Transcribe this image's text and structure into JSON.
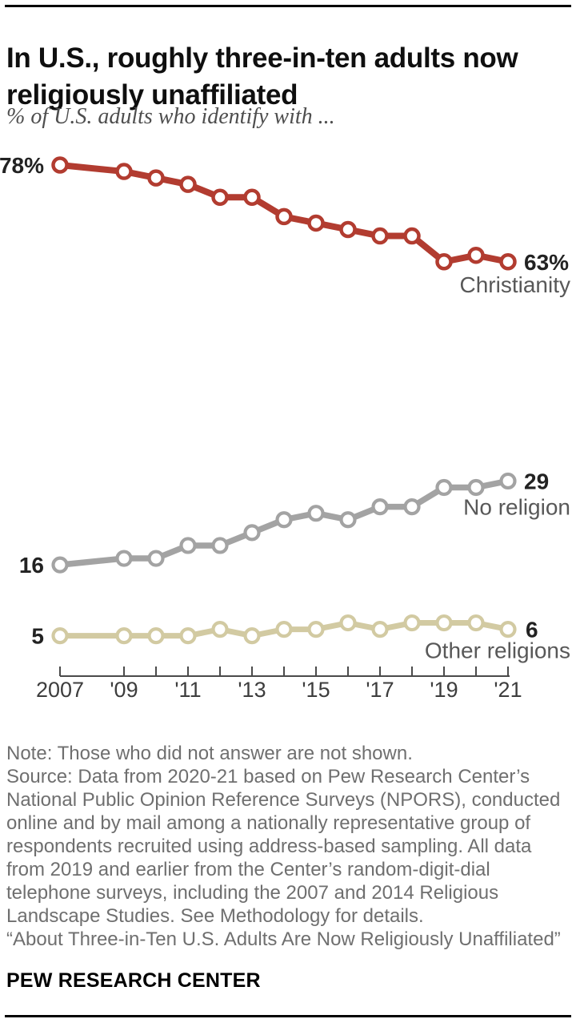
{
  "page": {
    "title": [
      "In U.S., roughly three-in-ten adults now",
      "religiously unaffiliated"
    ],
    "subtitle": "% of U.S. adults who identify with ...",
    "footer": {
      "note": "Note: Those who did not answer are not shown.",
      "source": "Source: Data from 2020-21 based on Pew Research Center’s National Public Opinion Reference Surveys (NPORS), conducted online and by mail among a nationally representative group of respondents recruited using address-based sampling. All data from 2019 and earlier from the Center’s random-digit-dial telephone surveys, including the 2007 and 2014 Religious Landscape Studies. See Methodology for details.",
      "report_title": "“About Three-in-Ten U.S. Adults Are Now Religiously Unaffiliated”",
      "brand": "PEW RESEARCH CENTER"
    }
  },
  "chart_data": {
    "type": "line",
    "title": "In U.S., roughly three-in-ten adults now religiously unaffiliated",
    "subtitle": "% of U.S. adults who identify with ...",
    "x": [
      2007,
      2009,
      2010,
      2011,
      2012,
      2013,
      2014,
      2015,
      2016,
      2017,
      2018,
      2019,
      2020,
      2021
    ],
    "x_tick_years": [
      2007,
      2009,
      2011,
      2013,
      2015,
      2017,
      2019,
      2021
    ],
    "x_tick_labels": [
      "2007",
      "'09",
      "'11",
      "'13",
      "'15",
      "'17",
      "'19",
      "'21"
    ],
    "ylim": [
      0,
      85
    ],
    "grid": false,
    "legend": "inline-end-labels",
    "series": [
      {
        "name": "Christianity",
        "color": "#b23c30",
        "start_label": "78%",
        "end_label": "63%",
        "values": [
          78,
          77,
          76,
          75,
          73,
          73,
          70,
          69,
          68,
          67,
          67,
          63,
          64,
          63
        ]
      },
      {
        "name": "No religion",
        "color": "#a3a3a3",
        "start_label": "16",
        "end_label": "29",
        "values": [
          16,
          17,
          17,
          19,
          19,
          21,
          23,
          24,
          23,
          25,
          25,
          28,
          28,
          29
        ]
      },
      {
        "name": "Other religions",
        "color": "#d2caa2",
        "start_label": "5",
        "end_label": "6",
        "values": [
          5,
          5,
          5,
          5,
          6,
          5,
          6,
          6,
          7,
          6,
          7,
          7,
          7,
          6
        ]
      }
    ]
  }
}
